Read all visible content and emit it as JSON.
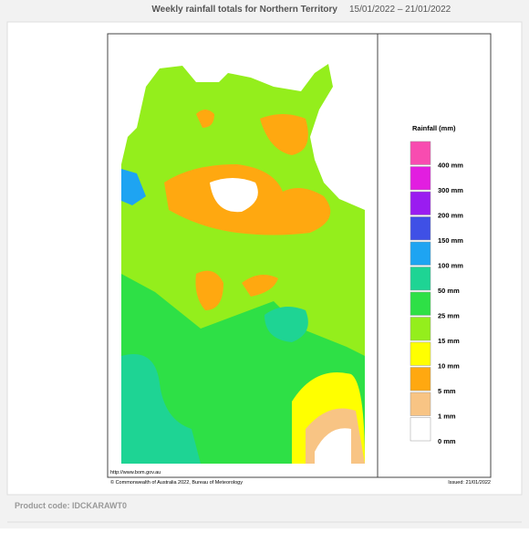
{
  "header": {
    "title": "Weekly rainfall totals for Northern Territory",
    "dates": "15/01/2022 – 21/01/2022"
  },
  "legend": {
    "title": "Rainfall (mm)",
    "items": [
      {
        "label": "400 mm",
        "color": "#f84cb0"
      },
      {
        "label": "300 mm",
        "color": "#e21ee0"
      },
      {
        "label": "200 mm",
        "color": "#9a1cf0"
      },
      {
        "label": "150 mm",
        "color": "#3f50e6"
      },
      {
        "label": "100 mm",
        "color": "#1ea4f2"
      },
      {
        "label": "50 mm",
        "color": "#1ed494"
      },
      {
        "label": "25 mm",
        "color": "#2ee046"
      },
      {
        "label": "15 mm",
        "color": "#94ee1c"
      },
      {
        "label": "10 mm",
        "color": "#ffff00"
      },
      {
        "label": "5 mm",
        "color": "#ffa810"
      },
      {
        "label": "1 mm",
        "color": "#f8c484"
      },
      {
        "label": "0 mm",
        "color": "#ffffff"
      }
    ]
  },
  "footer": {
    "url": "http://www.bom.gov.au",
    "copyright": "© Commonwealth of Australia 2022, Bureau of Meteorology",
    "issued": "Issued: 21/01/2022"
  },
  "product_code": "Product code: IDCKARAWT0"
}
